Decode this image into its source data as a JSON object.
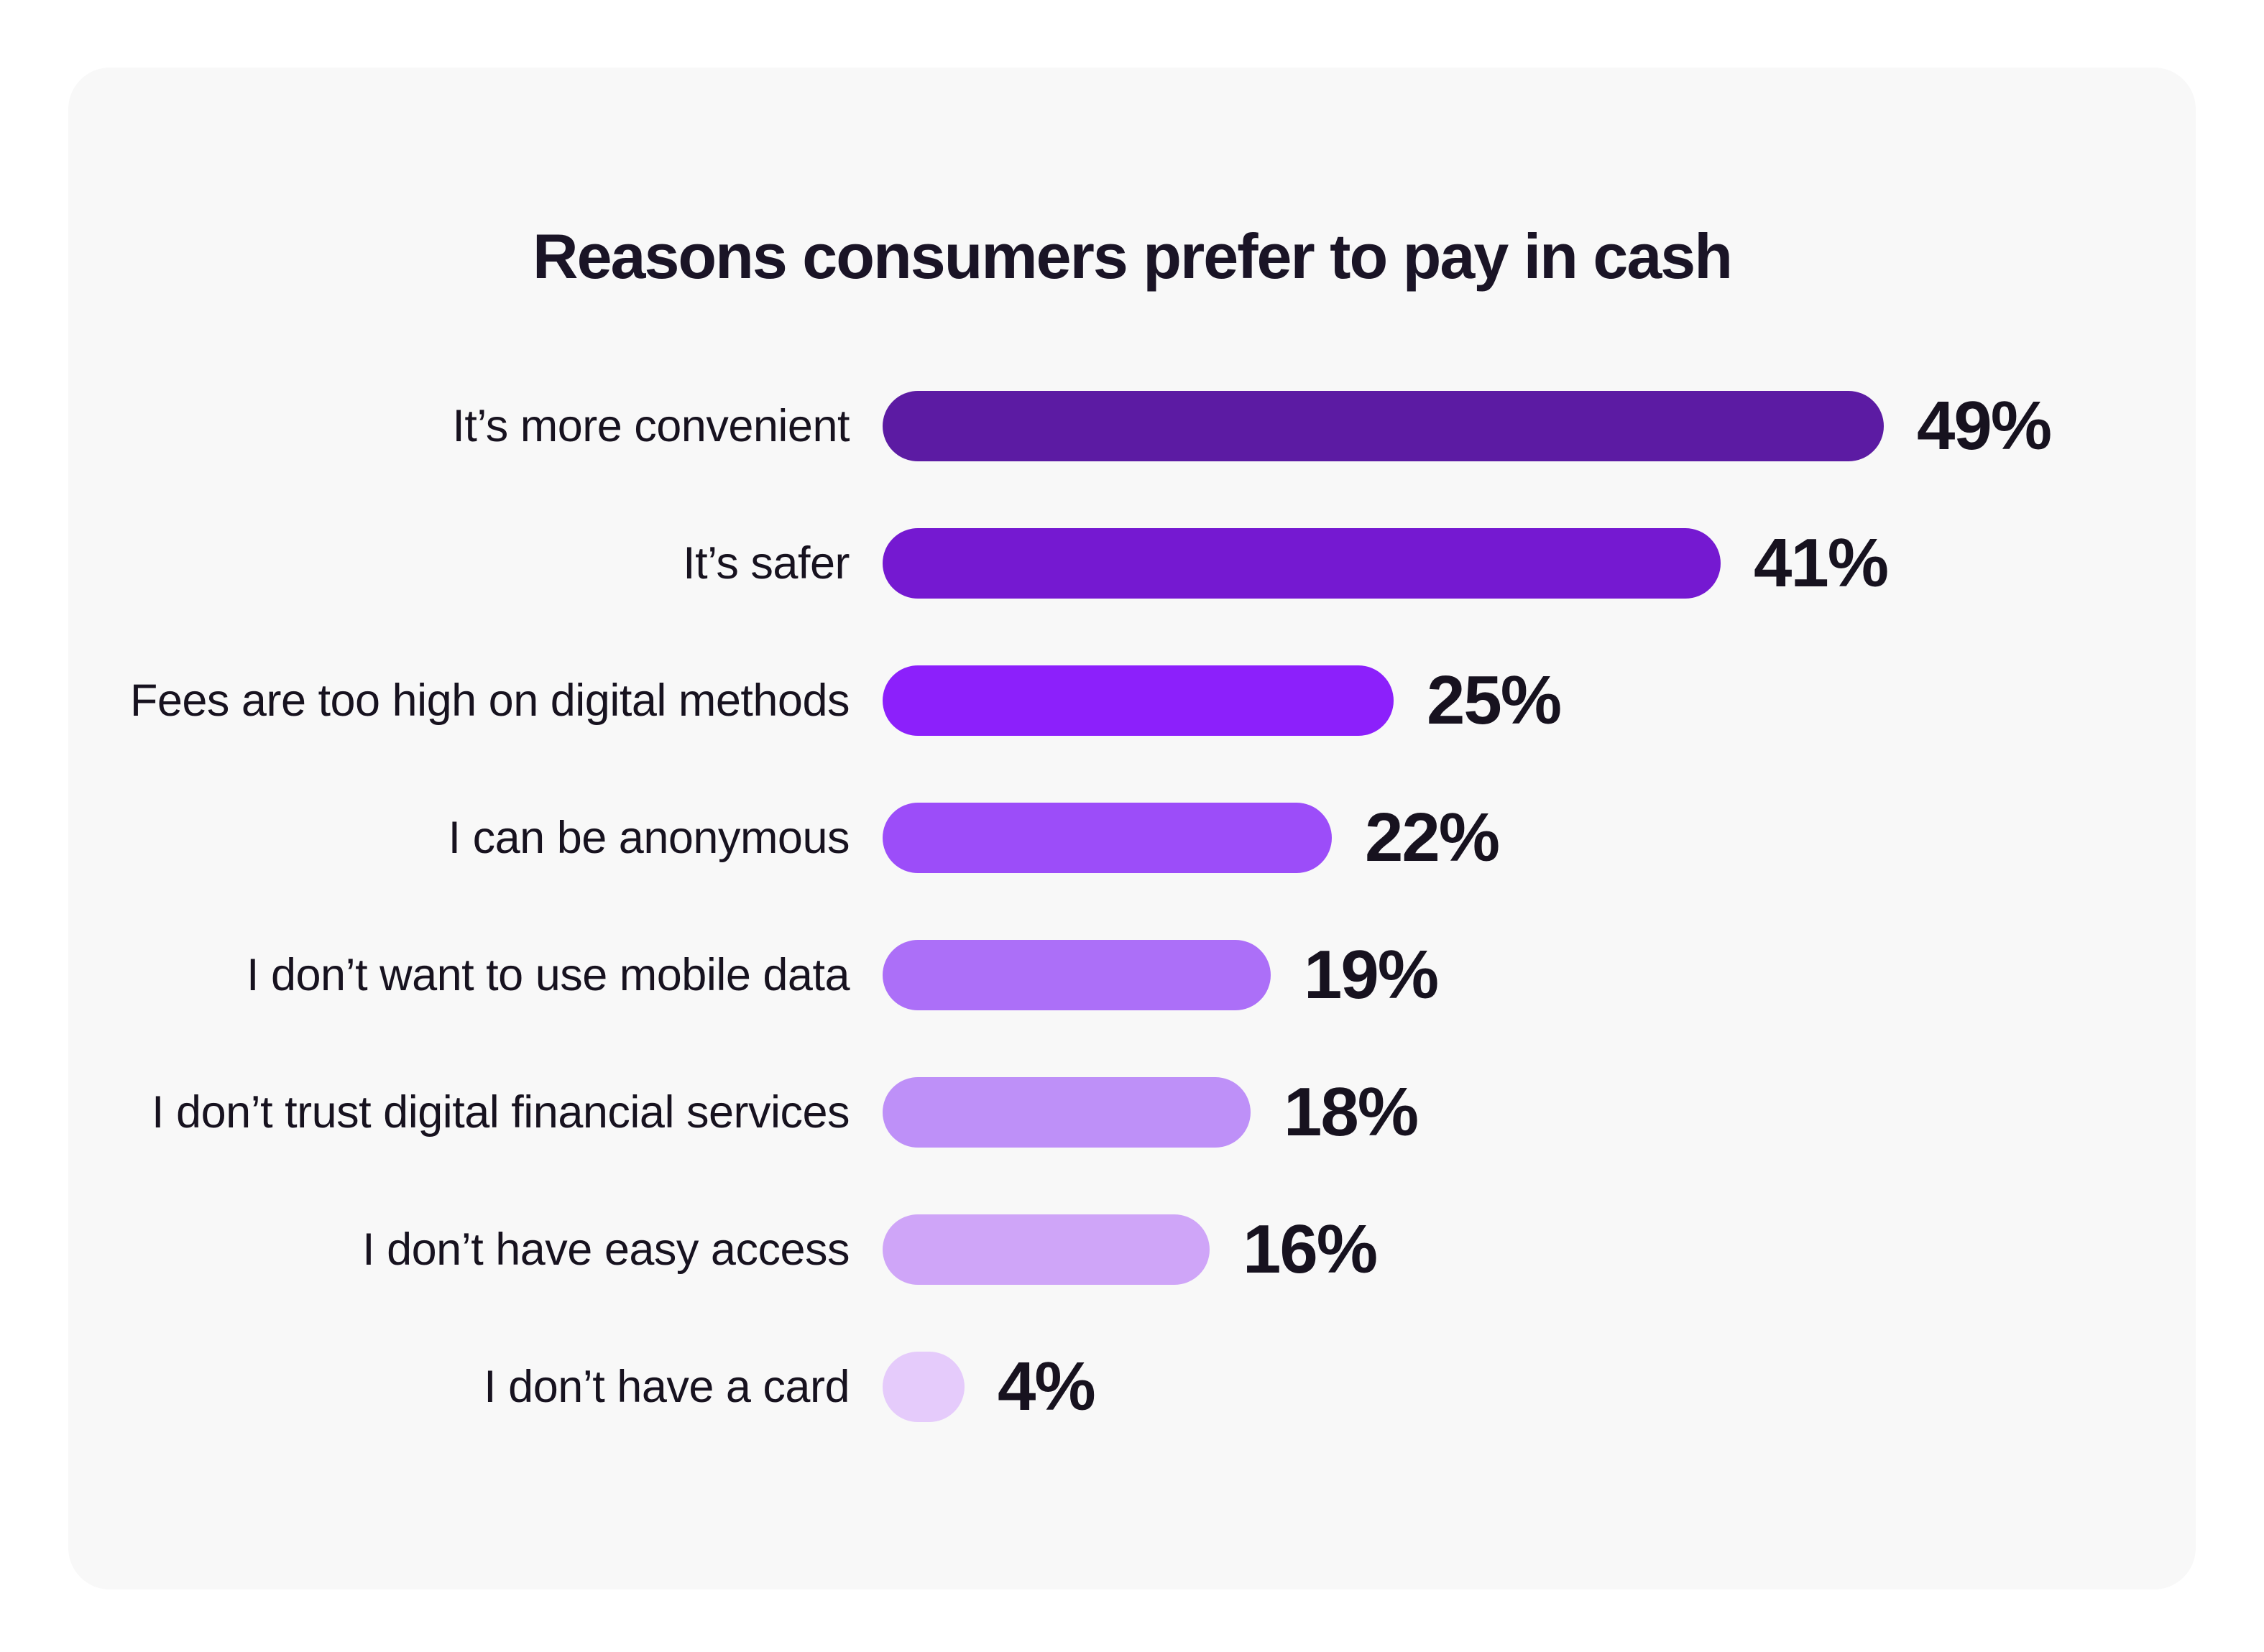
{
  "title": "Reasons consumers prefer to pay in cash",
  "colors": {
    "page_background": "#FFFFFF",
    "card_background": "#F8F8F8",
    "text": "#17121F",
    "title_text": "#1A1426"
  },
  "chart_data": {
    "type": "bar",
    "orientation": "horizontal",
    "title": "Reasons consumers prefer to pay in cash",
    "xlabel": "",
    "ylabel": "",
    "grid": false,
    "legend": false,
    "xlim": [
      0,
      49
    ],
    "categories": [
      "It’s more convenient",
      "It’s safer",
      "Fees are too high on digital methods",
      "I can be anonymous",
      "I don’t want to use mobile data",
      "I don’t trust digital financial services",
      "I don’t have easy access",
      "I don’t have a card"
    ],
    "values": [
      49,
      41,
      25,
      22,
      19,
      18,
      16,
      4
    ],
    "value_labels": [
      "49%",
      "41%",
      "25%",
      "22%",
      "19%",
      "18%",
      "16%",
      "4%"
    ],
    "bar_colors": [
      "#5C1BA3",
      "#7519D1",
      "#8C20FB",
      "#9C4DF9",
      "#AC6FF8",
      "#BE90F8",
      "#CFA5F8",
      "#E5CBFB"
    ]
  }
}
